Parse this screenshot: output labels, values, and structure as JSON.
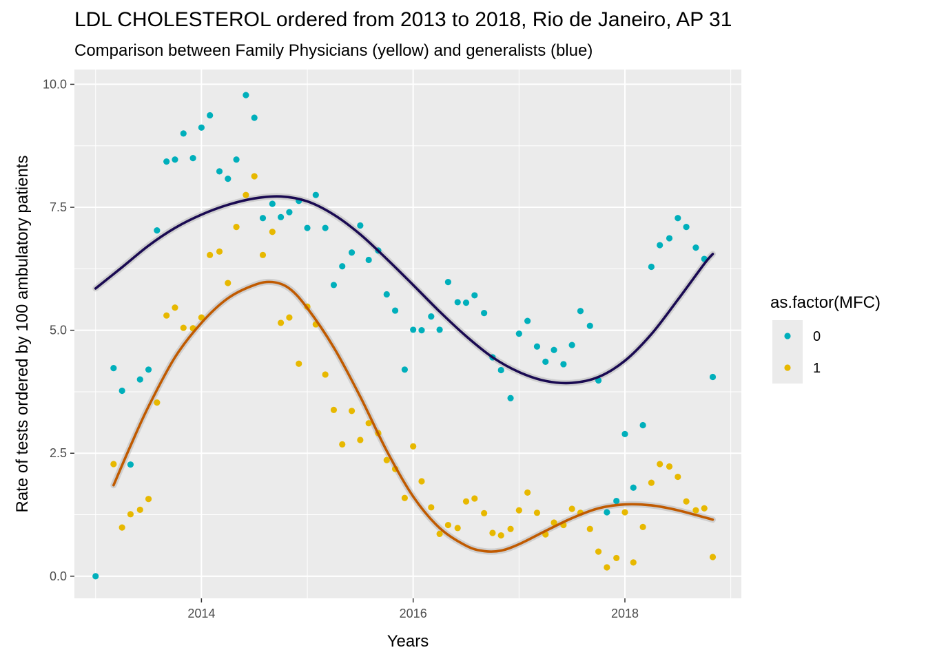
{
  "chart_data": {
    "type": "scatter",
    "title": "LDL CHOLESTEROL ordered from 2013 to 2018, Rio de Janeiro, AP 31",
    "subtitle": "Comparison between Family Physicians (yellow) and generalists (blue)",
    "xlabel": "Years",
    "ylabel": "Rate of tests ordered by 100 ambulatory patients",
    "xlim": [
      2012.8,
      2019.1
    ],
    "ylim": [
      -0.45,
      10.3
    ],
    "x_ticks": [
      2014,
      2016,
      2018
    ],
    "x_tick_labels": [
      "2014",
      "2016",
      "2018"
    ],
    "y_ticks": [
      0,
      2.5,
      5,
      7.5,
      10
    ],
    "y_tick_labels": [
      "0.0",
      "2.5",
      "5.0",
      "7.5",
      "10.0"
    ],
    "grid": true,
    "legend": {
      "title": "as.factor(MFC)",
      "position": "right"
    },
    "series": [
      {
        "name": "0",
        "color": "#00AFBB",
        "smooth_color": "#1A0A52",
        "points": [
          [
            2013.0,
            0.0
          ],
          [
            2013.17,
            4.23
          ],
          [
            2013.25,
            3.77
          ],
          [
            2013.33,
            2.27
          ],
          [
            2013.42,
            4.0
          ],
          [
            2013.5,
            4.2
          ],
          [
            2013.58,
            7.03
          ],
          [
            2013.67,
            8.43
          ],
          [
            2013.75,
            8.47
          ],
          [
            2013.83,
            9.0
          ],
          [
            2013.92,
            8.5
          ],
          [
            2014.0,
            9.12
          ],
          [
            2014.08,
            9.37
          ],
          [
            2014.17,
            8.23
          ],
          [
            2014.25,
            8.08
          ],
          [
            2014.33,
            8.47
          ],
          [
            2014.42,
            9.78
          ],
          [
            2014.5,
            9.32
          ],
          [
            2014.58,
            7.28
          ],
          [
            2014.67,
            7.57
          ],
          [
            2014.75,
            7.3
          ],
          [
            2014.83,
            7.4
          ],
          [
            2014.92,
            7.63
          ],
          [
            2015.0,
            7.08
          ],
          [
            2015.08,
            7.75
          ],
          [
            2015.17,
            7.08
          ],
          [
            2015.25,
            5.92
          ],
          [
            2015.33,
            6.3
          ],
          [
            2015.42,
            6.58
          ],
          [
            2015.5,
            7.13
          ],
          [
            2015.58,
            6.43
          ],
          [
            2015.67,
            6.62
          ],
          [
            2015.75,
            5.73
          ],
          [
            2015.83,
            5.4
          ],
          [
            2015.92,
            4.2
          ],
          [
            2016.0,
            5.01
          ],
          [
            2016.08,
            5.0
          ],
          [
            2016.17,
            5.28
          ],
          [
            2016.25,
            5.01
          ],
          [
            2016.33,
            5.98
          ],
          [
            2016.42,
            5.57
          ],
          [
            2016.5,
            5.56
          ],
          [
            2016.58,
            5.71
          ],
          [
            2016.67,
            5.35
          ],
          [
            2016.75,
            4.45
          ],
          [
            2016.83,
            4.19
          ],
          [
            2016.92,
            3.62
          ],
          [
            2017.0,
            4.93
          ],
          [
            2017.08,
            5.19
          ],
          [
            2017.17,
            4.67
          ],
          [
            2017.25,
            4.36
          ],
          [
            2017.33,
            4.6
          ],
          [
            2017.42,
            4.31
          ],
          [
            2017.5,
            4.7
          ],
          [
            2017.58,
            5.39
          ],
          [
            2017.67,
            5.09
          ],
          [
            2017.75,
            3.98
          ],
          [
            2017.83,
            1.3
          ],
          [
            2017.92,
            1.53
          ],
          [
            2018.0,
            2.89
          ],
          [
            2018.08,
            1.8
          ],
          [
            2018.17,
            3.07
          ],
          [
            2018.25,
            6.29
          ],
          [
            2018.33,
            6.73
          ],
          [
            2018.42,
            6.87
          ],
          [
            2018.5,
            7.28
          ],
          [
            2018.58,
            7.1
          ],
          [
            2018.67,
            6.68
          ],
          [
            2018.75,
            6.45
          ],
          [
            2018.83,
            4.05
          ]
        ],
        "smooth": [
          [
            2013.0,
            5.85
          ],
          [
            2013.25,
            6.28
          ],
          [
            2013.5,
            6.72
          ],
          [
            2013.75,
            7.08
          ],
          [
            2014.0,
            7.35
          ],
          [
            2014.25,
            7.55
          ],
          [
            2014.5,
            7.68
          ],
          [
            2014.75,
            7.72
          ],
          [
            2015.0,
            7.62
          ],
          [
            2015.25,
            7.35
          ],
          [
            2015.5,
            6.95
          ],
          [
            2015.75,
            6.45
          ],
          [
            2016.0,
            5.92
          ],
          [
            2016.25,
            5.38
          ],
          [
            2016.5,
            4.88
          ],
          [
            2016.75,
            4.45
          ],
          [
            2017.0,
            4.15
          ],
          [
            2017.25,
            3.97
          ],
          [
            2017.5,
            3.93
          ],
          [
            2017.75,
            4.05
          ],
          [
            2018.0,
            4.38
          ],
          [
            2018.25,
            4.92
          ],
          [
            2018.5,
            5.62
          ],
          [
            2018.75,
            6.35
          ],
          [
            2018.83,
            6.55
          ]
        ]
      },
      {
        "name": "1",
        "color": "#E7B800",
        "smooth_color": "#C05A00",
        "points": [
          [
            2013.17,
            2.28
          ],
          [
            2013.25,
            0.99
          ],
          [
            2013.33,
            1.26
          ],
          [
            2013.42,
            1.35
          ],
          [
            2013.5,
            1.57
          ],
          [
            2013.58,
            3.53
          ],
          [
            2013.67,
            5.3
          ],
          [
            2013.75,
            5.46
          ],
          [
            2013.83,
            5.05
          ],
          [
            2013.92,
            5.04
          ],
          [
            2014.0,
            5.26
          ],
          [
            2014.08,
            6.53
          ],
          [
            2014.17,
            6.6
          ],
          [
            2014.25,
            5.96
          ],
          [
            2014.33,
            7.1
          ],
          [
            2014.42,
            7.75
          ],
          [
            2014.5,
            8.13
          ],
          [
            2014.58,
            6.53
          ],
          [
            2014.67,
            7.0
          ],
          [
            2014.75,
            5.15
          ],
          [
            2014.83,
            5.26
          ],
          [
            2014.92,
            4.32
          ],
          [
            2015.0,
            5.48
          ],
          [
            2015.08,
            5.12
          ],
          [
            2015.17,
            4.1
          ],
          [
            2015.25,
            3.38
          ],
          [
            2015.33,
            2.68
          ],
          [
            2015.42,
            3.36
          ],
          [
            2015.5,
            2.77
          ],
          [
            2015.58,
            3.11
          ],
          [
            2015.67,
            2.91
          ],
          [
            2015.75,
            2.36
          ],
          [
            2015.83,
            2.18
          ],
          [
            2015.92,
            1.59
          ],
          [
            2016.0,
            2.64
          ],
          [
            2016.08,
            1.93
          ],
          [
            2016.17,
            1.4
          ],
          [
            2016.25,
            0.86
          ],
          [
            2016.33,
            1.04
          ],
          [
            2016.42,
            0.98
          ],
          [
            2016.5,
            1.52
          ],
          [
            2016.58,
            1.58
          ],
          [
            2016.67,
            1.28
          ],
          [
            2016.75,
            0.88
          ],
          [
            2016.83,
            0.83
          ],
          [
            2016.92,
            0.96
          ],
          [
            2017.0,
            1.34
          ],
          [
            2017.08,
            1.7
          ],
          [
            2017.17,
            1.29
          ],
          [
            2017.25,
            0.85
          ],
          [
            2017.33,
            1.09
          ],
          [
            2017.42,
            1.04
          ],
          [
            2017.5,
            1.37
          ],
          [
            2017.58,
            1.29
          ],
          [
            2017.67,
            0.96
          ],
          [
            2017.75,
            0.5
          ],
          [
            2017.83,
            0.18
          ],
          [
            2017.92,
            0.37
          ],
          [
            2018.0,
            1.3
          ],
          [
            2018.08,
            0.28
          ],
          [
            2018.17,
            1.0
          ],
          [
            2018.25,
            1.9
          ],
          [
            2018.33,
            2.28
          ],
          [
            2018.42,
            2.23
          ],
          [
            2018.5,
            2.02
          ],
          [
            2018.58,
            1.52
          ],
          [
            2018.67,
            1.34
          ],
          [
            2018.75,
            1.38
          ],
          [
            2018.83,
            0.39
          ]
        ],
        "smooth": [
          [
            2013.17,
            1.85
          ],
          [
            2013.33,
            2.65
          ],
          [
            2013.5,
            3.45
          ],
          [
            2013.75,
            4.45
          ],
          [
            2014.0,
            5.15
          ],
          [
            2014.25,
            5.65
          ],
          [
            2014.5,
            5.92
          ],
          [
            2014.67,
            5.98
          ],
          [
            2014.83,
            5.85
          ],
          [
            2015.0,
            5.45
          ],
          [
            2015.25,
            4.65
          ],
          [
            2015.5,
            3.65
          ],
          [
            2015.75,
            2.55
          ],
          [
            2016.0,
            1.62
          ],
          [
            2016.25,
            0.98
          ],
          [
            2016.5,
            0.62
          ],
          [
            2016.67,
            0.51
          ],
          [
            2016.83,
            0.52
          ],
          [
            2017.0,
            0.65
          ],
          [
            2017.25,
            0.92
          ],
          [
            2017.5,
            1.18
          ],
          [
            2017.75,
            1.38
          ],
          [
            2018.0,
            1.46
          ],
          [
            2018.25,
            1.44
          ],
          [
            2018.5,
            1.34
          ],
          [
            2018.83,
            1.15
          ]
        ]
      }
    ]
  }
}
